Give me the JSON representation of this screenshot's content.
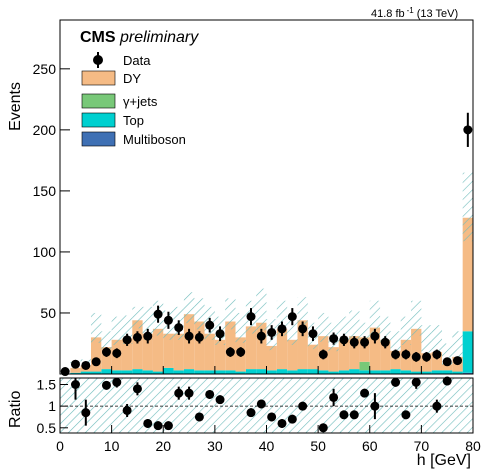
{
  "header": {
    "lumi_label": "41.8 fb",
    "lumi_exponent": "-1",
    "lumi_suffix": "(13 TeV)",
    "experiment": "CMS",
    "status": "preliminary"
  },
  "chart_data": [
    {
      "type": "bar",
      "stacked": true,
      "histogram": true,
      "xlabel": "h [GeV]",
      "ylabel": "Events",
      "xlim": [
        0,
        80
      ],
      "ylim": [
        0,
        290
      ],
      "x_ticks": [
        0,
        10,
        20,
        30,
        40,
        50,
        60,
        70,
        80
      ],
      "y_ticks": [
        50,
        100,
        150,
        200,
        250
      ],
      "bin_edges": [
        0,
        2,
        4,
        6,
        8,
        10,
        12,
        14,
        16,
        18,
        20,
        22,
        24,
        26,
        28,
        30,
        32,
        34,
        36,
        38,
        40,
        42,
        44,
        46,
        48,
        50,
        52,
        54,
        56,
        58,
        60,
        62,
        64,
        66,
        68,
        70,
        72,
        74,
        76,
        78,
        80
      ],
      "legend_position": "top-left",
      "legend": [
        "Data",
        "DY",
        "γ+jets",
        "Top",
        "Multiboson"
      ],
      "series": [
        {
          "name": "Multiboson",
          "color": "#3f70b4",
          "values": [
            0,
            0,
            0,
            0,
            0,
            0,
            0,
            0,
            0,
            0,
            0,
            0,
            0,
            0,
            0,
            0,
            0,
            0,
            0,
            0,
            0,
            0,
            0,
            0,
            0,
            0,
            0,
            0,
            0,
            0,
            0,
            0,
            0,
            0,
            0,
            0,
            0,
            0,
            0,
            1
          ]
        },
        {
          "name": "Top",
          "color": "#00d0d0",
          "values": [
            0,
            1,
            2,
            2,
            4,
            3,
            3,
            4,
            3,
            2,
            5,
            3,
            4,
            3,
            3,
            3,
            3,
            2,
            4,
            4,
            3,
            4,
            3,
            4,
            4,
            3,
            2,
            3,
            4,
            3,
            3,
            3,
            4,
            3,
            2,
            2,
            3,
            3,
            2,
            34
          ]
        },
        {
          "name": "γ+jets",
          "color": "#78c878",
          "values": [
            0,
            0,
            0,
            0,
            0,
            0,
            0,
            0,
            0,
            0,
            0,
            0,
            0,
            0,
            0,
            0,
            0,
            0,
            0,
            0,
            0,
            0,
            0,
            0,
            0,
            0,
            0,
            0,
            0,
            7,
            0,
            0,
            0,
            0,
            0,
            0,
            0,
            0,
            0,
            0
          ]
        },
        {
          "name": "DY",
          "color": "#f5bb85",
          "values": [
            0,
            4,
            5,
            28,
            18,
            25,
            26,
            40,
            30,
            35,
            28,
            30,
            45,
            40,
            30,
            25,
            40,
            28,
            35,
            38,
            20,
            33,
            25,
            40,
            20,
            28,
            20,
            25,
            27,
            20,
            35,
            25,
            15,
            25,
            35,
            15,
            15,
            5,
            12,
            93
          ]
        }
      ],
      "uncertainty_band": {
        "label_hatch": true,
        "upper": [
          0,
          10,
          12,
          50,
          35,
          47,
          48,
          55,
          55,
          60,
          52,
          55,
          67,
          62,
          55,
          47,
          62,
          50,
          60,
          70,
          45,
          60,
          47,
          63,
          42,
          50,
          42,
          47,
          52,
          42,
          60,
          47,
          35,
          47,
          60,
          40,
          40,
          25,
          35,
          165
        ]
      },
      "data": {
        "name": "Data",
        "x": [
          1,
          3,
          5,
          7,
          9,
          11,
          13,
          15,
          17,
          19,
          21,
          23,
          25,
          27,
          29,
          31,
          33,
          35,
          37,
          39,
          41,
          43,
          45,
          47,
          49,
          51,
          53,
          55,
          57,
          59,
          61,
          63,
          65,
          67,
          69,
          71,
          73,
          75,
          77,
          79
        ],
        "y": [
          2,
          8,
          7,
          10,
          18,
          17,
          28,
          30,
          31,
          49,
          44,
          38,
          31,
          30,
          40,
          33,
          18,
          18,
          47,
          31,
          34,
          37,
          47,
          37,
          33,
          16,
          29,
          28,
          26,
          26,
          31,
          26,
          16,
          16,
          14,
          14,
          16,
          10,
          11,
          200
        ],
        "yerr": [
          2,
          3,
          3,
          3,
          4,
          4,
          5,
          5,
          6,
          7,
          7,
          6,
          6,
          5,
          6,
          6,
          4,
          4,
          7,
          6,
          6,
          6,
          7,
          6,
          6,
          4,
          5,
          5,
          5,
          5,
          6,
          5,
          4,
          4,
          4,
          4,
          4,
          3,
          3,
          14
        ]
      }
    },
    {
      "type": "scatter",
      "xlabel": "h [GeV]",
      "ylabel": "Ratio",
      "xlim": [
        0,
        80
      ],
      "ylim": [
        0.38,
        1.65
      ],
      "y_ticks": [
        0.5,
        1,
        1.5
      ],
      "reference_line": 1,
      "x": [
        1,
        3,
        5,
        7,
        9,
        11,
        13,
        15,
        17,
        19,
        21,
        23,
        25,
        27,
        29,
        31,
        33,
        35,
        37,
        39,
        41,
        43,
        45,
        47,
        49,
        51,
        53,
        55,
        57,
        59,
        61,
        63,
        65,
        67,
        69,
        71,
        73,
        75,
        77,
        79
      ],
      "y": [
        null,
        1.5,
        0.85,
        null,
        1.48,
        1.55,
        0.9,
        1.4,
        0.6,
        0.55,
        0.55,
        1.3,
        1.3,
        0.75,
        1.27,
        1.15,
        null,
        null,
        0.85,
        1.05,
        0.75,
        0.6,
        0.7,
        1.0,
        null,
        0.5,
        1.2,
        0.8,
        0.8,
        1.3,
        1.0,
        null,
        1.55,
        0.8,
        1.55,
        null,
        1.0,
        1.58,
        null,
        null
      ],
      "yerr": [
        0,
        0.35,
        0.3,
        0,
        0.1,
        0.12,
        0.15,
        0.15,
        0.1,
        0.1,
        0.1,
        0.15,
        0.15,
        0.1,
        0.1,
        0.1,
        0,
        0,
        0.1,
        0.1,
        0.1,
        0.1,
        0.1,
        0.1,
        0,
        0.1,
        0.2,
        0.1,
        0.1,
        0.1,
        0.3,
        0,
        0.1,
        0.1,
        0.15,
        0,
        0.15,
        0.1,
        0,
        0
      ]
    }
  ]
}
